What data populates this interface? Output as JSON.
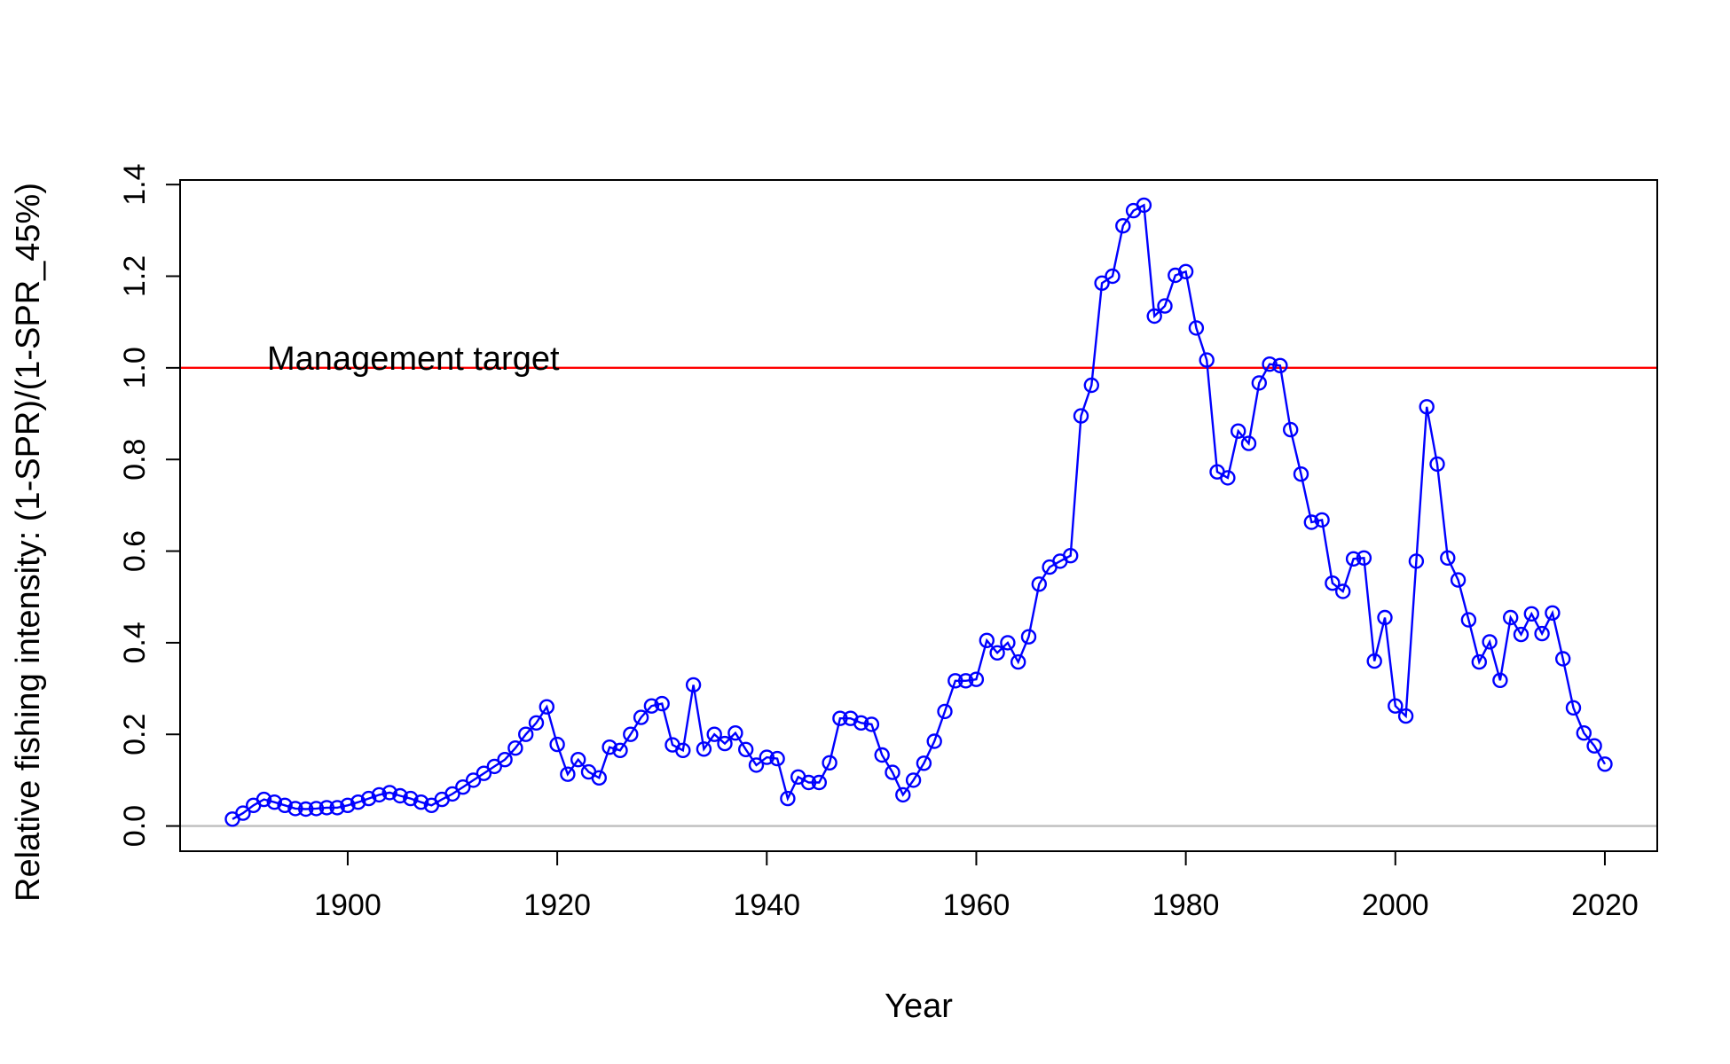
{
  "chart_data": {
    "type": "line",
    "xlabel": "Year",
    "ylabel": "Relative fishing intensity: (1-SPR)/(1-SPR_45%)",
    "xlim": [
      1884,
      2025
    ],
    "ylim": [
      -0.055,
      1.41
    ],
    "x_ticks": [
      1900,
      1920,
      1940,
      1960,
      1980,
      2000,
      2020
    ],
    "y_ticks": [
      0.0,
      0.2,
      0.4,
      0.6,
      0.8,
      1.0,
      1.2,
      1.4
    ],
    "x_tick_labels": [
      "1900",
      "1920",
      "1940",
      "1960",
      "1980",
      "2000",
      "2020"
    ],
    "y_tick_labels": [
      "0.0",
      "0.2",
      "0.4",
      "0.6",
      "0.8",
      "1.0",
      "1.2",
      "1.4"
    ],
    "grid": false,
    "reference_lines": [
      {
        "y": 1.0,
        "color": "#ff0000",
        "label": "Management target",
        "label_x": 1892.3
      },
      {
        "y": 0.0,
        "color": "#bebebe"
      }
    ],
    "series": [
      {
        "color": "#0000ff",
        "marker": "open-circle",
        "x": [
          1889,
          1890,
          1891,
          1892,
          1893,
          1894,
          1895,
          1896,
          1897,
          1898,
          1899,
          1900,
          1901,
          1902,
          1903,
          1904,
          1905,
          1906,
          1907,
          1908,
          1909,
          1910,
          1911,
          1912,
          1913,
          1914,
          1915,
          1916,
          1917,
          1918,
          1919,
          1920,
          1921,
          1922,
          1923,
          1924,
          1925,
          1926,
          1927,
          1928,
          1929,
          1930,
          1931,
          1932,
          1933,
          1934,
          1935,
          1936,
          1937,
          1938,
          1939,
          1940,
          1941,
          1942,
          1943,
          1944,
          1945,
          1946,
          1947,
          1948,
          1949,
          1950,
          1951,
          1952,
          1953,
          1954,
          1955,
          1956,
          1957,
          1958,
          1959,
          1960,
          1961,
          1962,
          1963,
          1964,
          1965,
          1966,
          1967,
          1968,
          1969,
          1970,
          1971,
          1972,
          1973,
          1974,
          1975,
          1976,
          1977,
          1978,
          1979,
          1980,
          1981,
          1982,
          1983,
          1984,
          1985,
          1986,
          1987,
          1988,
          1989,
          1990,
          1991,
          1992,
          1993,
          1994,
          1995,
          1996,
          1997,
          1998,
          1999,
          2000,
          2001,
          2002,
          2003,
          2004,
          2005,
          2006,
          2007,
          2008,
          2009,
          2010,
          2011,
          2012,
          2013,
          2014,
          2015,
          2016,
          2017,
          2018,
          2019,
          2020
        ],
        "values": [
          0.015,
          0.028,
          0.045,
          0.058,
          0.052,
          0.045,
          0.038,
          0.037,
          0.038,
          0.04,
          0.04,
          0.045,
          0.052,
          0.06,
          0.068,
          0.073,
          0.066,
          0.06,
          0.052,
          0.045,
          0.058,
          0.07,
          0.085,
          0.1,
          0.115,
          0.13,
          0.145,
          0.17,
          0.2,
          0.225,
          0.26,
          0.178,
          0.113,
          0.145,
          0.118,
          0.105,
          0.172,
          0.165,
          0.2,
          0.237,
          0.262,
          0.267,
          0.177,
          0.165,
          0.308,
          0.168,
          0.2,
          0.18,
          0.203,
          0.167,
          0.133,
          0.15,
          0.147,
          0.06,
          0.107,
          0.095,
          0.095,
          0.138,
          0.235,
          0.235,
          0.225,
          0.222,
          0.155,
          0.117,
          0.068,
          0.1,
          0.137,
          0.185,
          0.25,
          0.317,
          0.317,
          0.32,
          0.405,
          0.378,
          0.4,
          0.358,
          0.413,
          0.528,
          0.565,
          0.578,
          0.59,
          0.895,
          0.962,
          1.185,
          1.2,
          1.31,
          1.343,
          1.355,
          1.113,
          1.135,
          1.202,
          1.21,
          1.087,
          1.017,
          0.773,
          0.76,
          0.862,
          0.835,
          0.967,
          1.008,
          1.005,
          0.865,
          0.768,
          0.663,
          0.668,
          0.53,
          0.512,
          0.583,
          0.585,
          0.36,
          0.455,
          0.262,
          0.24,
          0.578,
          0.915,
          0.79,
          0.585,
          0.537,
          0.45,
          0.358,
          0.402,
          0.318,
          0.455,
          0.418,
          0.463,
          0.42,
          0.465,
          0.365,
          0.258,
          0.203,
          0.175,
          0.135
        ]
      }
    ]
  }
}
